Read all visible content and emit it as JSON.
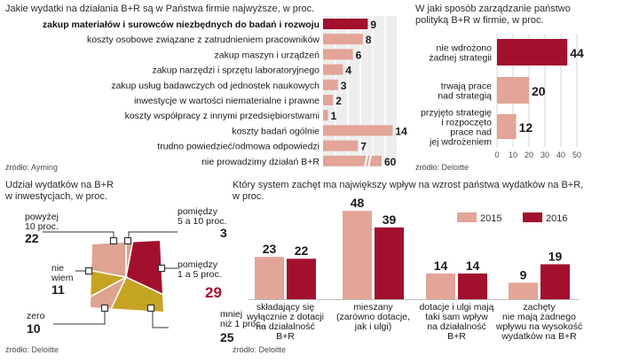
{
  "colors": {
    "bar": "#e2a597",
    "highlight": "#a3102e",
    "olive": "#c5a424",
    "salmon": "#dea391",
    "grid": "#d4d4d4",
    "ink": "#1a1a1a"
  },
  "chart_data": [
    {
      "type": "bar",
      "orientation": "horizontal",
      "title": "Jakie wydatki na działania B+R są w Państwa firmie najwyższe, w proc.",
      "categories": [
        "zakup materiałów i surowców niezbędnych do badań i rozwoju",
        "koszty osobowe związane z zatrudnieniem pracowników",
        "zakup maszyn i urządzeń",
        "zakup narzędzi i sprzętu laboratoryjnego",
        "zakup usług badawczych od jednostek naukowych",
        "inwestycje w wartości niematerialne i prawne",
        "koszty współpracy z innymi przedsiębiorstwami",
        "koszty badań ogólnie",
        "trudno powiedzieć/odmowa odpowiedzi",
        "nie prowadzimy działań B+R"
      ],
      "values": [
        9,
        8,
        6,
        4,
        3,
        2,
        1,
        14,
        7,
        60
      ],
      "value_labels": [
        "9",
        "8",
        "6",
        "4",
        "3",
        "2",
        "1",
        "14",
        "7",
        "60"
      ],
      "highlight_index": 0,
      "break_index": 9,
      "source": "źródło: Ayming"
    },
    {
      "type": "bar",
      "orientation": "horizontal",
      "title_lines": [
        "W jaki sposób zarządzanie państwo",
        "polityką B+R w firmie, w proc."
      ],
      "categories": [
        [
          "nie wdrożono",
          "żadnej strategii"
        ],
        [
          "trwają prace",
          "nad strategią"
        ],
        [
          "przyjęto strategię",
          "i rozpoczęto",
          "prace nad",
          "jej wdrożeniem"
        ]
      ],
      "values": [
        44,
        20,
        12
      ],
      "value_labels": [
        "44",
        "20",
        "12"
      ],
      "highlight_index": 0,
      "xlim": [
        0,
        50
      ],
      "xticks": [
        "0",
        "10",
        "20",
        "30",
        "40",
        "50"
      ],
      "source": "źródło: Deloitte"
    },
    {
      "type": "pie",
      "title_lines": [
        "Udział wydatków na B+R",
        "w inwestycjach, w proc."
      ],
      "slices": [
        {
          "label": [
            "pomiędzy",
            "5 a 10 proc."
          ],
          "value": 3,
          "value_label": "3",
          "color": "salmon"
        },
        {
          "label": [
            "pomiędzy",
            "1 a 5 proc."
          ],
          "value": 29,
          "value_label": "29",
          "color": "highlight"
        },
        {
          "label": [
            "mniej",
            "niż 1 proc."
          ],
          "value": 25,
          "value_label": "25",
          "color": "olive"
        },
        {
          "label": [
            "zero"
          ],
          "value": 10,
          "value_label": "10",
          "color": "salmon"
        },
        {
          "label": [
            "nie",
            "wiem"
          ],
          "value": 11,
          "value_label": "11",
          "color": "olive"
        },
        {
          "label": [
            "powyżej",
            "10 proc."
          ],
          "value": 22,
          "value_label": "22",
          "color": "salmon"
        }
      ],
      "source": "źródło: Deloitte"
    },
    {
      "type": "bar",
      "orientation": "vertical",
      "title_lines": [
        "Który system zachęt ma największy wpływ na wzrost państwa wydatków na B+R,",
        "w proc."
      ],
      "categories": [
        [
          "składający się",
          "wyłącznie z dotacji",
          "na działalność",
          "B+R"
        ],
        [
          "mieszany",
          "(zarówno dotacje,",
          "jak i ulgi)"
        ],
        [
          "dotacje i ulgi mają",
          "taki sam wpływ",
          "na działalność",
          "B+R"
        ],
        [
          "zachęty",
          "nie mają żadnego",
          "wpływu na wysokość",
          "wydatków na B+R"
        ]
      ],
      "series": [
        {
          "name": "2015",
          "values": [
            23,
            48,
            14,
            9
          ],
          "value_labels": [
            "23",
            "48",
            "14",
            "9"
          ],
          "color": "bar"
        },
        {
          "name": "2016",
          "values": [
            22,
            39,
            14,
            19
          ],
          "value_labels": [
            "22",
            "39",
            "14",
            "19"
          ],
          "color": "highlight"
        }
      ],
      "ylim": [
        0,
        50
      ],
      "source": "źródło: Deloitte"
    }
  ]
}
